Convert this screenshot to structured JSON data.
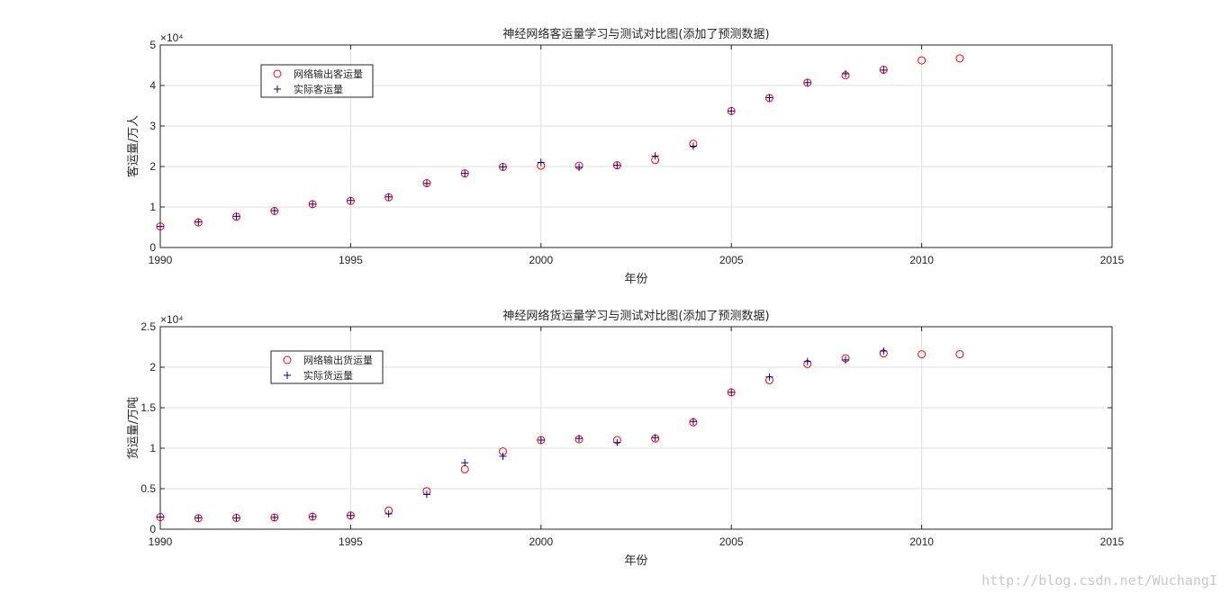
{
  "chart_data": [
    {
      "type": "scatter",
      "title": "神经网络客运量学习与测试对比图(添加了预测数据)",
      "xlabel": "年份",
      "ylabel": "客运量/万人",
      "xlim": [
        1990,
        2015
      ],
      "ylim": [
        0,
        50000
      ],
      "xticks": [
        1990,
        1995,
        2000,
        2005,
        2010,
        2015
      ],
      "yticks": [
        0,
        10000,
        20000,
        30000,
        40000,
        50000
      ],
      "ytick_labels": [
        "0",
        "1",
        "2",
        "3",
        "4",
        "5"
      ],
      "exponent_label": "×10⁴",
      "grid": true,
      "legend_position": "top-left",
      "series": [
        {
          "name": "网络输出客运量",
          "marker": "circle",
          "color": "#ff0000",
          "x": [
            1990,
            1991,
            1992,
            1993,
            1994,
            1995,
            1996,
            1997,
            1998,
            1999,
            2000,
            2001,
            2002,
            2003,
            2004,
            2005,
            2006,
            2007,
            2008,
            2009,
            2010,
            2011
          ],
          "values": [
            5200,
            6200,
            7600,
            9000,
            10700,
            11500,
            12400,
            15900,
            18300,
            19900,
            20200,
            20200,
            20300,
            21600,
            25600,
            33700,
            36900,
            40700,
            42500,
            43900,
            46200,
            46700
          ]
        },
        {
          "name": "实际客运量",
          "marker": "plus",
          "color": "#00008b",
          "x": [
            1990,
            1991,
            1992,
            1993,
            1994,
            1995,
            1996,
            1997,
            1998,
            1999,
            2000,
            2001,
            2002,
            2003,
            2004,
            2005,
            2006,
            2007,
            2008,
            2009
          ],
          "values": [
            5200,
            6300,
            7700,
            9100,
            10700,
            11600,
            12500,
            15800,
            18300,
            19900,
            21000,
            19800,
            20300,
            22600,
            25000,
            33700,
            37000,
            40700,
            42900,
            43800
          ]
        }
      ]
    },
    {
      "type": "scatter",
      "title": "神经网络货运量学习与测试对比图(添加了预测数据)",
      "xlabel": "年份",
      "ylabel": "货运量/万吨",
      "xlim": [
        1990,
        2015
      ],
      "ylim": [
        0,
        25000
      ],
      "xticks": [
        1990,
        1995,
        2000,
        2005,
        2010,
        2015
      ],
      "yticks": [
        0,
        5000,
        10000,
        15000,
        20000,
        25000
      ],
      "ytick_labels": [
        "0",
        "0.5",
        "1",
        "1.5",
        "2",
        "2.5"
      ],
      "exponent_label": "×10⁴",
      "grid": true,
      "legend_position": "top-left",
      "series": [
        {
          "name": "网络输出货运量",
          "marker": "circle",
          "color": "#ff0000",
          "x": [
            1990,
            1991,
            1992,
            1993,
            1994,
            1995,
            1996,
            1997,
            1998,
            1999,
            2000,
            2001,
            2002,
            2003,
            2004,
            2005,
            2006,
            2007,
            2008,
            2009,
            2010,
            2011
          ],
          "values": [
            1500,
            1350,
            1400,
            1450,
            1550,
            1700,
            2300,
            4700,
            7400,
            9600,
            11000,
            11100,
            11000,
            11200,
            13200,
            16900,
            18400,
            20400,
            21100,
            21700,
            21600,
            21600
          ]
        },
        {
          "name": "实际货运量",
          "marker": "plus",
          "color": "#00008b",
          "x": [
            1990,
            1991,
            1992,
            1993,
            1994,
            1995,
            1996,
            1997,
            1998,
            1999,
            2000,
            2001,
            2002,
            2003,
            2004,
            2005,
            2006,
            2007,
            2008,
            2009
          ],
          "values": [
            1500,
            1400,
            1400,
            1450,
            1550,
            1700,
            1900,
            4300,
            8200,
            9000,
            11000,
            11200,
            10700,
            11300,
            13300,
            16900,
            18800,
            20700,
            20900,
            22000
          ]
        }
      ]
    }
  ],
  "watermark": "http://blog.csdn.net/WuchangI"
}
